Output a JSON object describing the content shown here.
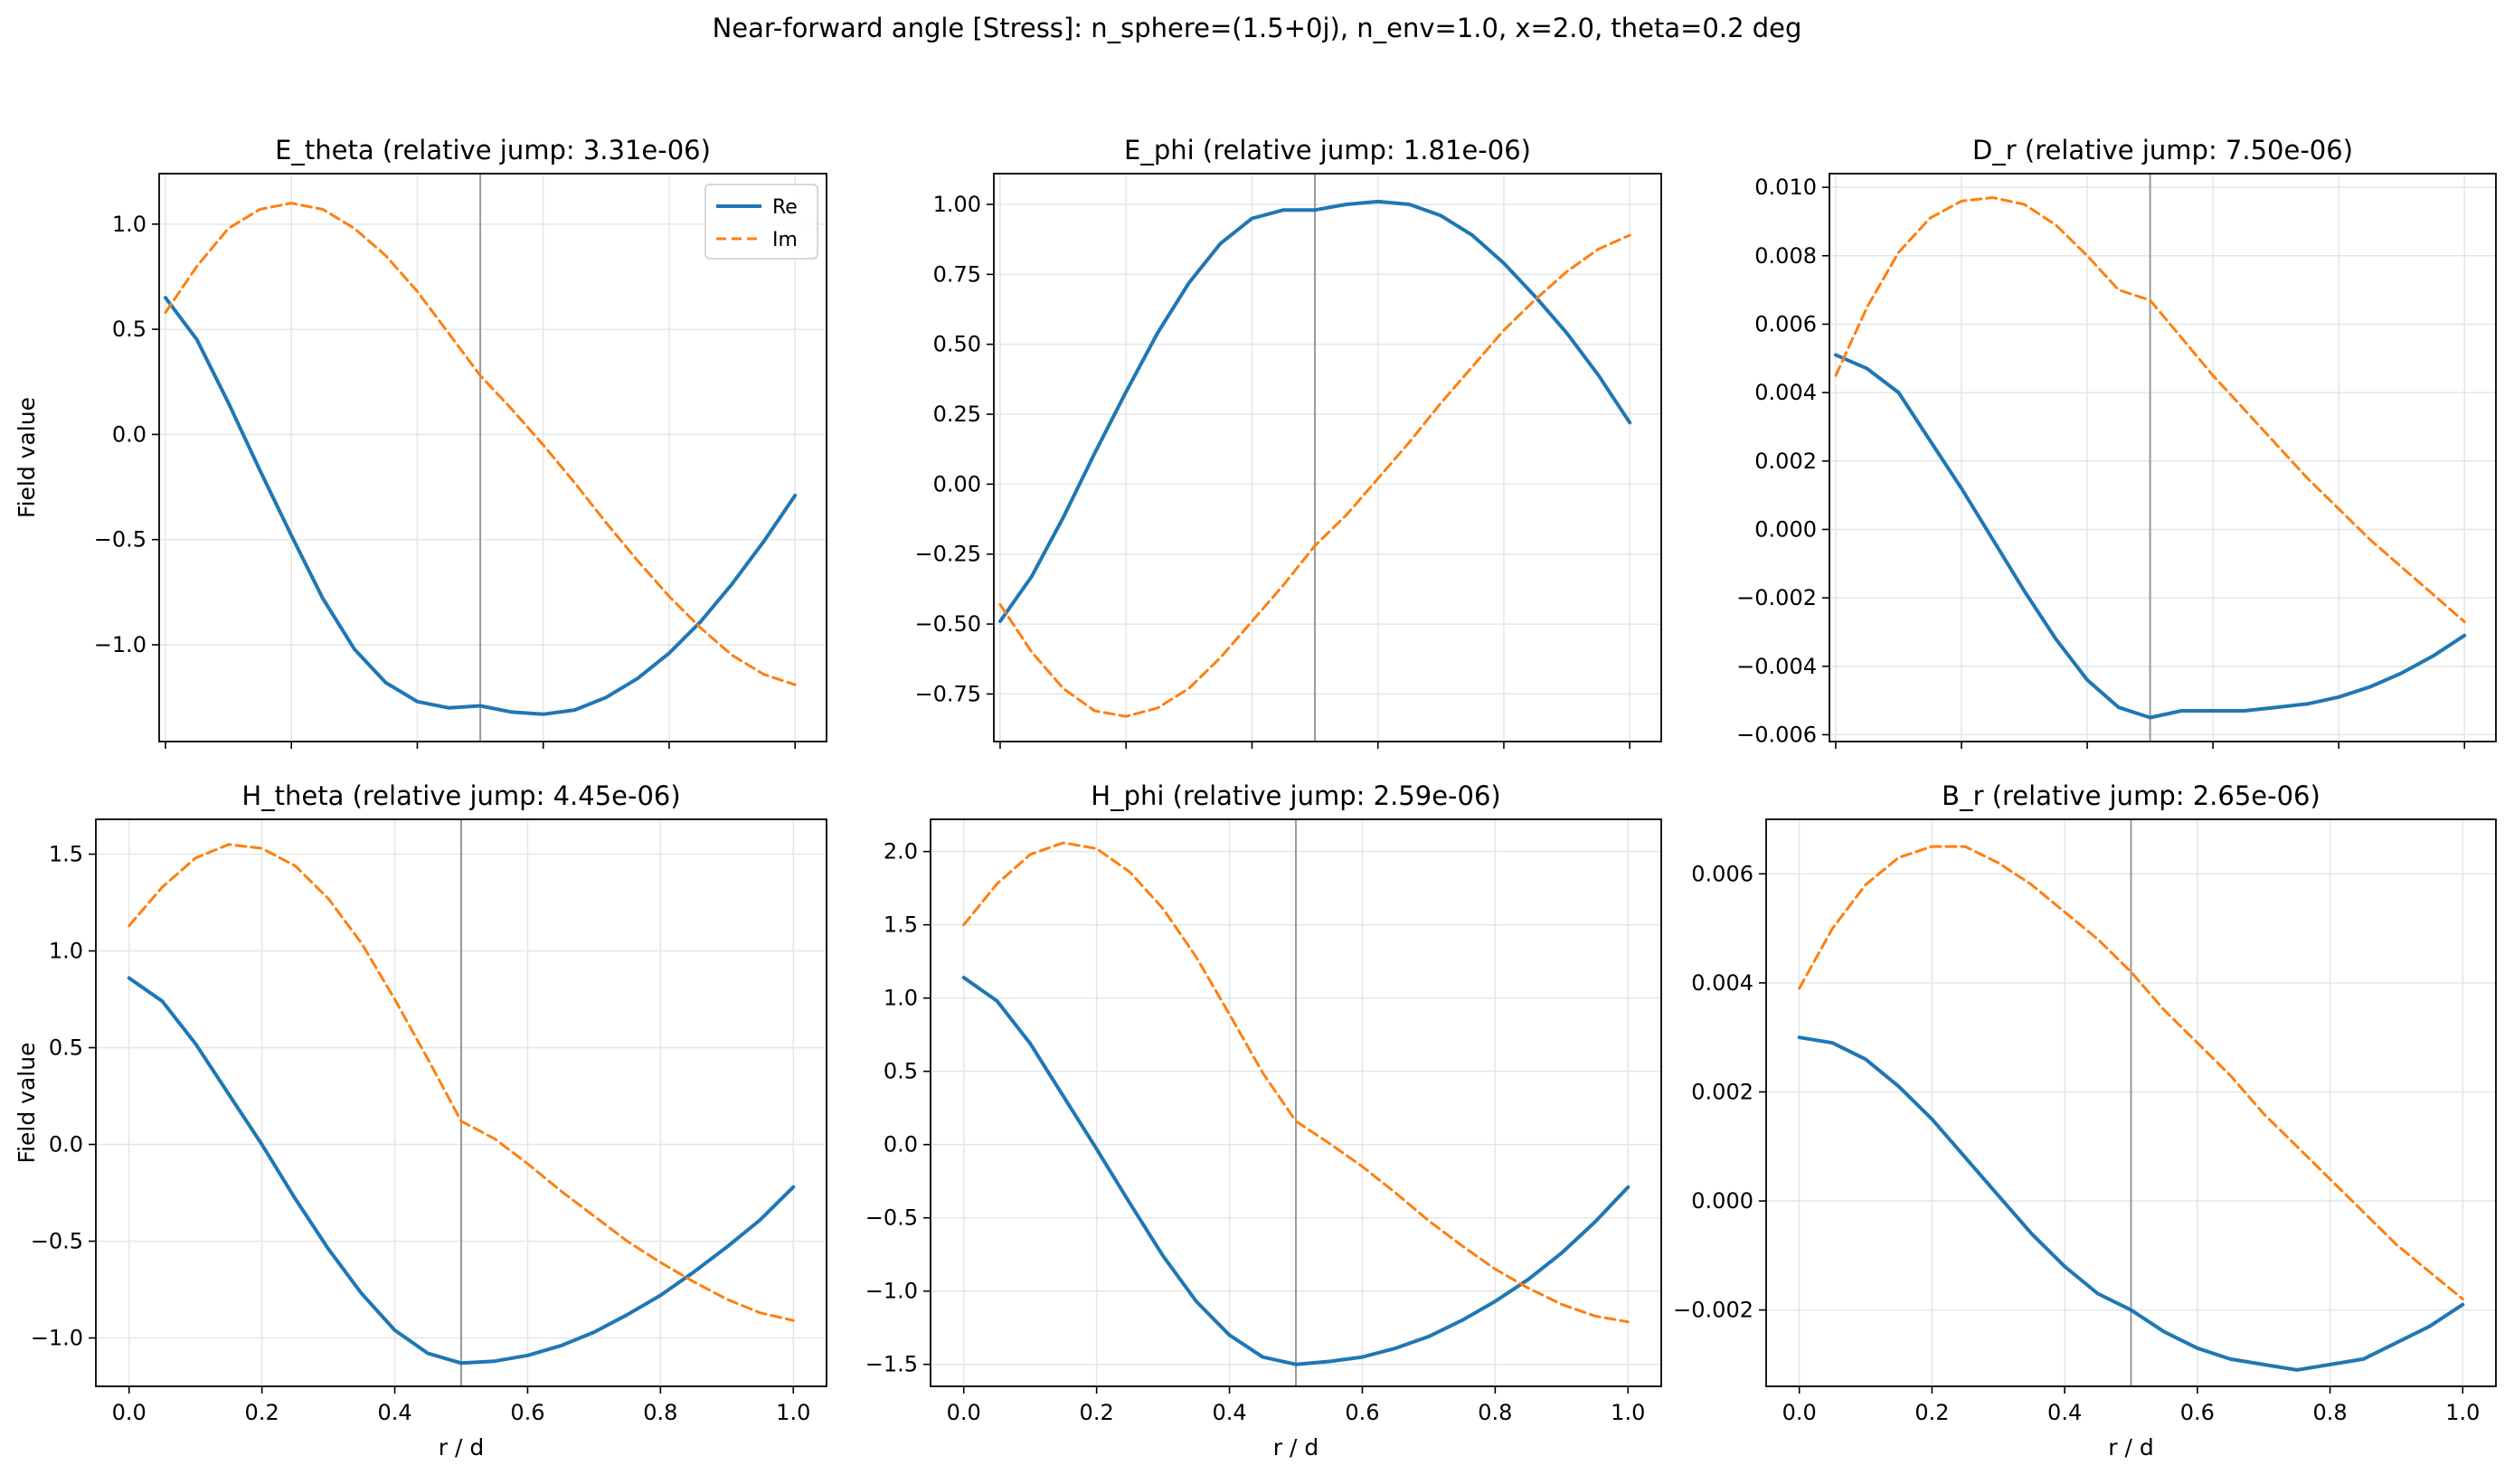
{
  "figure": {
    "suptitle": "Near-forward angle [Stress]: n_sphere=(1.5+0j), n_env=1.0, x=2.0, theta=0.2 deg",
    "colors": {
      "re": "#1f77b4",
      "im": "#ff7f0e",
      "interface": "#999999",
      "grid": "#e6e6e6"
    }
  },
  "chart_data": [
    {
      "type": "line",
      "title": "E_theta (relative jump: 3.31e-06)",
      "xlabel": "",
      "ylabel": "Field value",
      "xlim": [
        -0.01,
        1.05
      ],
      "ylim": [
        -1.46,
        1.24
      ],
      "xticks": [
        0.0,
        0.2,
        0.4,
        0.6,
        0.8,
        1.0
      ],
      "xtick_labels_visible": false,
      "yticks": [
        -1.0,
        -0.5,
        0.0,
        0.5,
        1.0
      ],
      "ytick_labels": [
        "−1.0",
        "−0.5",
        "0.0",
        "0.5",
        "1.0"
      ],
      "interface_x": 0.5,
      "grid": true,
      "legend": {
        "placement": "upper-right",
        "entries": [
          "Re",
          "Im"
        ]
      },
      "series": [
        {
          "name": "Re",
          "style": "solid",
          "x": [
            0.0,
            0.05,
            0.1,
            0.15,
            0.2,
            0.25,
            0.3,
            0.35,
            0.4,
            0.45,
            0.5,
            0.55,
            0.6,
            0.65,
            0.7,
            0.75,
            0.8,
            0.85,
            0.9,
            0.95,
            1.0
          ],
          "y": [
            0.65,
            0.45,
            0.15,
            -0.17,
            -0.48,
            -0.78,
            -1.02,
            -1.18,
            -1.27,
            -1.3,
            -1.29,
            -1.32,
            -1.33,
            -1.31,
            -1.25,
            -1.16,
            -1.04,
            -0.89,
            -0.71,
            -0.51,
            -0.29
          ]
        },
        {
          "name": "Im",
          "style": "dashed",
          "x": [
            0.0,
            0.05,
            0.1,
            0.15,
            0.2,
            0.25,
            0.3,
            0.35,
            0.4,
            0.45,
            0.5,
            0.55,
            0.6,
            0.65,
            0.7,
            0.75,
            0.8,
            0.85,
            0.9,
            0.95,
            1.0
          ],
          "y": [
            0.58,
            0.8,
            0.98,
            1.07,
            1.1,
            1.07,
            0.98,
            0.85,
            0.68,
            0.48,
            0.28,
            0.12,
            -0.05,
            -0.23,
            -0.42,
            -0.6,
            -0.77,
            -0.92,
            -1.05,
            -1.14,
            -1.19
          ]
        }
      ]
    },
    {
      "type": "line",
      "title": "E_phi (relative jump: 1.81e-06)",
      "xlabel": "",
      "ylabel": "",
      "xlim": [
        -0.01,
        1.05
      ],
      "ylim": [
        -0.92,
        1.11
      ],
      "xticks": [
        0.0,
        0.2,
        0.4,
        0.6,
        0.8,
        1.0
      ],
      "xtick_labels_visible": false,
      "yticks": [
        -0.75,
        -0.5,
        -0.25,
        0.0,
        0.25,
        0.5,
        0.75,
        1.0
      ],
      "ytick_labels": [
        "−0.75",
        "−0.50",
        "−0.25",
        "0.00",
        "0.25",
        "0.50",
        "0.75",
        "1.00"
      ],
      "interface_x": 0.5,
      "grid": true,
      "series": [
        {
          "name": "Re",
          "style": "solid",
          "x": [
            0.0,
            0.05,
            0.1,
            0.15,
            0.2,
            0.25,
            0.3,
            0.35,
            0.4,
            0.45,
            0.5,
            0.55,
            0.6,
            0.65,
            0.7,
            0.75,
            0.8,
            0.85,
            0.9,
            0.95,
            1.0
          ],
          "y": [
            -0.49,
            -0.33,
            -0.12,
            0.11,
            0.33,
            0.54,
            0.72,
            0.86,
            0.95,
            0.98,
            0.98,
            1.0,
            1.01,
            1.0,
            0.96,
            0.89,
            0.79,
            0.67,
            0.54,
            0.39,
            0.22
          ]
        },
        {
          "name": "Im",
          "style": "dashed",
          "x": [
            0.0,
            0.05,
            0.1,
            0.15,
            0.2,
            0.25,
            0.3,
            0.35,
            0.4,
            0.45,
            0.5,
            0.55,
            0.6,
            0.65,
            0.7,
            0.75,
            0.8,
            0.85,
            0.9,
            0.95,
            1.0
          ],
          "y": [
            -0.43,
            -0.6,
            -0.73,
            -0.81,
            -0.83,
            -0.8,
            -0.73,
            -0.62,
            -0.49,
            -0.36,
            -0.22,
            -0.11,
            0.02,
            0.15,
            0.29,
            0.42,
            0.55,
            0.66,
            0.76,
            0.84,
            0.89
          ]
        }
      ]
    },
    {
      "type": "line",
      "title": "D_r (relative jump: 7.50e-06)",
      "xlabel": "",
      "ylabel": "",
      "xlim": [
        -0.01,
        1.05
      ],
      "ylim": [
        -0.0062,
        0.0104
      ],
      "xticks": [
        0.0,
        0.2,
        0.4,
        0.6,
        0.8,
        1.0
      ],
      "xtick_labels_visible": false,
      "yticks": [
        -0.006,
        -0.004,
        -0.002,
        0.0,
        0.002,
        0.004,
        0.006,
        0.008,
        0.01
      ],
      "ytick_labels": [
        "−0.006",
        "−0.004",
        "−0.002",
        "0.000",
        "0.002",
        "0.004",
        "0.006",
        "0.008",
        "0.010"
      ],
      "interface_x": 0.5,
      "grid": true,
      "series": [
        {
          "name": "Re",
          "style": "solid",
          "x": [
            0.0,
            0.05,
            0.1,
            0.15,
            0.2,
            0.25,
            0.3,
            0.35,
            0.4,
            0.45,
            0.5,
            0.55,
            0.6,
            0.65,
            0.7,
            0.75,
            0.8,
            0.85,
            0.9,
            0.95,
            1.0
          ],
          "y": [
            0.0051,
            0.0047,
            0.004,
            0.0026,
            0.0012,
            -0.0003,
            -0.0018,
            -0.0032,
            -0.0044,
            -0.0052,
            -0.0055,
            -0.0053,
            -0.0053,
            -0.0053,
            -0.0052,
            -0.0051,
            -0.0049,
            -0.0046,
            -0.0042,
            -0.0037,
            -0.0031
          ]
        },
        {
          "name": "Im",
          "style": "dashed",
          "x": [
            0.0,
            0.05,
            0.1,
            0.15,
            0.2,
            0.25,
            0.3,
            0.35,
            0.4,
            0.45,
            0.5,
            0.55,
            0.6,
            0.65,
            0.7,
            0.75,
            0.8,
            0.85,
            0.9,
            0.95,
            1.0
          ],
          "y": [
            0.0045,
            0.0065,
            0.0081,
            0.0091,
            0.0096,
            0.0097,
            0.0095,
            0.0089,
            0.008,
            0.007,
            0.0067,
            0.0056,
            0.0045,
            0.0035,
            0.0025,
            0.0015,
            0.0006,
            -0.0003,
            -0.0011,
            -0.0019,
            -0.0027
          ]
        }
      ]
    },
    {
      "type": "line",
      "title": "H_theta (relative jump: 4.45e-06)",
      "xlabel": "r / d",
      "ylabel": "Field value",
      "xlim": [
        -0.05,
        1.05
      ],
      "ylim": [
        -1.25,
        1.68
      ],
      "xticks": [
        0.0,
        0.2,
        0.4,
        0.6,
        0.8,
        1.0
      ],
      "xtick_labels": [
        "0.0",
        "0.2",
        "0.4",
        "0.6",
        "0.8",
        "1.0"
      ],
      "xtick_labels_visible": true,
      "yticks": [
        -1.0,
        -0.5,
        0.0,
        0.5,
        1.0,
        1.5
      ],
      "ytick_labels": [
        "−1.0",
        "−0.5",
        "0.0",
        "0.5",
        "1.0",
        "1.5"
      ],
      "interface_x": 0.5,
      "grid": true,
      "series": [
        {
          "name": "Re",
          "style": "solid",
          "x": [
            0.0,
            0.05,
            0.1,
            0.15,
            0.2,
            0.25,
            0.3,
            0.35,
            0.4,
            0.45,
            0.5,
            0.55,
            0.6,
            0.65,
            0.7,
            0.75,
            0.8,
            0.85,
            0.9,
            0.95,
            1.0
          ],
          "y": [
            0.86,
            0.74,
            0.52,
            0.26,
            0.0,
            -0.28,
            -0.54,
            -0.77,
            -0.96,
            -1.08,
            -1.13,
            -1.12,
            -1.09,
            -1.04,
            -0.97,
            -0.88,
            -0.78,
            -0.66,
            -0.53,
            -0.39,
            -0.22
          ]
        },
        {
          "name": "Im",
          "style": "dashed",
          "x": [
            0.0,
            0.05,
            0.1,
            0.15,
            0.2,
            0.25,
            0.3,
            0.35,
            0.4,
            0.45,
            0.5,
            0.55,
            0.6,
            0.65,
            0.7,
            0.75,
            0.8,
            0.85,
            0.9,
            0.95,
            1.0
          ],
          "y": [
            1.13,
            1.33,
            1.48,
            1.55,
            1.53,
            1.44,
            1.27,
            1.04,
            0.75,
            0.44,
            0.12,
            0.03,
            -0.1,
            -0.24,
            -0.37,
            -0.5,
            -0.61,
            -0.71,
            -0.8,
            -0.87,
            -0.91
          ]
        }
      ]
    },
    {
      "type": "line",
      "title": "H_phi (relative jump: 2.59e-06)",
      "xlabel": "r / d",
      "ylabel": "",
      "xlim": [
        -0.05,
        1.05
      ],
      "ylim": [
        -1.65,
        2.22
      ],
      "xticks": [
        0.0,
        0.2,
        0.4,
        0.6,
        0.8,
        1.0
      ],
      "xtick_labels": [
        "0.0",
        "0.2",
        "0.4",
        "0.6",
        "0.8",
        "1.0"
      ],
      "xtick_labels_visible": true,
      "yticks": [
        -1.5,
        -1.0,
        -0.5,
        0.0,
        0.5,
        1.0,
        1.5,
        2.0
      ],
      "ytick_labels": [
        "−1.5",
        "−1.0",
        "−0.5",
        "0.0",
        "0.5",
        "1.0",
        "1.5",
        "2.0"
      ],
      "interface_x": 0.5,
      "grid": true,
      "series": [
        {
          "name": "Re",
          "style": "solid",
          "x": [
            0.0,
            0.05,
            0.1,
            0.15,
            0.2,
            0.25,
            0.3,
            0.35,
            0.4,
            0.45,
            0.5,
            0.55,
            0.6,
            0.65,
            0.7,
            0.75,
            0.8,
            0.85,
            0.9,
            0.95,
            1.0
          ],
          "y": [
            1.14,
            0.98,
            0.69,
            0.33,
            -0.03,
            -0.4,
            -0.76,
            -1.07,
            -1.3,
            -1.45,
            -1.5,
            -1.48,
            -1.45,
            -1.39,
            -1.31,
            -1.2,
            -1.07,
            -0.92,
            -0.74,
            -0.53,
            -0.29
          ]
        },
        {
          "name": "Im",
          "style": "dashed",
          "x": [
            0.0,
            0.05,
            0.1,
            0.15,
            0.2,
            0.25,
            0.3,
            0.35,
            0.4,
            0.45,
            0.5,
            0.55,
            0.6,
            0.65,
            0.7,
            0.75,
            0.8,
            0.85,
            0.9,
            0.95,
            1.0
          ],
          "y": [
            1.5,
            1.78,
            1.98,
            2.06,
            2.02,
            1.86,
            1.61,
            1.28,
            0.89,
            0.49,
            0.16,
            0.01,
            -0.15,
            -0.33,
            -0.52,
            -0.69,
            -0.85,
            -0.98,
            -1.09,
            -1.17,
            -1.21
          ]
        }
      ]
    },
    {
      "type": "line",
      "title": "B_r (relative jump: 2.65e-06)",
      "xlabel": "r / d",
      "ylabel": "",
      "xlim": [
        -0.05,
        1.05
      ],
      "ylim": [
        -0.0034,
        0.007
      ],
      "xticks": [
        0.0,
        0.2,
        0.4,
        0.6,
        0.8,
        1.0
      ],
      "xtick_labels": [
        "0.0",
        "0.2",
        "0.4",
        "0.6",
        "0.8",
        "1.0"
      ],
      "xtick_labels_visible": true,
      "yticks": [
        -0.002,
        0.0,
        0.002,
        0.004,
        0.006
      ],
      "ytick_labels": [
        "−0.002",
        "0.000",
        "0.002",
        "0.004",
        "0.006"
      ],
      "interface_x": 0.5,
      "grid": true,
      "series": [
        {
          "name": "Re",
          "style": "solid",
          "x": [
            0.0,
            0.05,
            0.1,
            0.15,
            0.2,
            0.25,
            0.3,
            0.35,
            0.4,
            0.45,
            0.5,
            0.55,
            0.6,
            0.65,
            0.7,
            0.75,
            0.8,
            0.85,
            0.9,
            0.95,
            1.0
          ],
          "y": [
            0.003,
            0.0029,
            0.0026,
            0.0021,
            0.0015,
            0.0008,
            0.0001,
            -0.0006,
            -0.0012,
            -0.0017,
            -0.002,
            -0.0024,
            -0.0027,
            -0.0029,
            -0.003,
            -0.0031,
            -0.003,
            -0.0029,
            -0.0026,
            -0.0023,
            -0.0019
          ]
        },
        {
          "name": "Im",
          "style": "dashed",
          "x": [
            0.0,
            0.05,
            0.1,
            0.15,
            0.2,
            0.25,
            0.3,
            0.35,
            0.4,
            0.45,
            0.5,
            0.55,
            0.6,
            0.65,
            0.7,
            0.75,
            0.8,
            0.85,
            0.9,
            0.95,
            1.0
          ],
          "y": [
            0.0039,
            0.005,
            0.0058,
            0.0063,
            0.0065,
            0.0065,
            0.0062,
            0.0058,
            0.0053,
            0.0048,
            0.0042,
            0.0035,
            0.0029,
            0.0023,
            0.0016,
            0.001,
            0.0004,
            -0.0002,
            -0.0008,
            -0.0013,
            -0.0018
          ]
        }
      ]
    }
  ]
}
